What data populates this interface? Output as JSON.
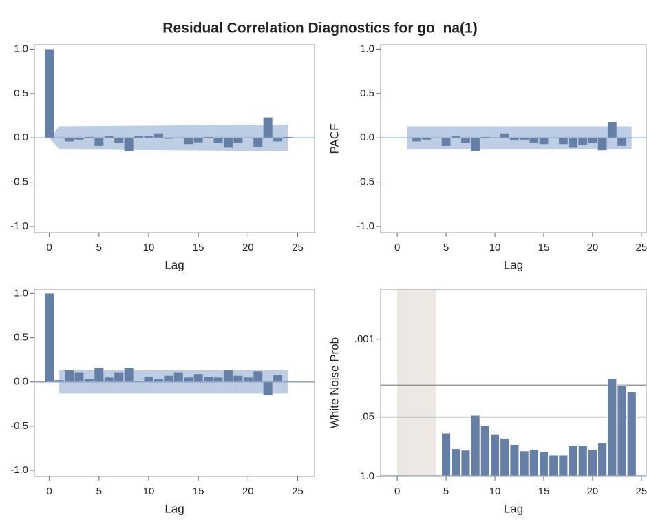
{
  "title": "Residual Correlation Diagnostics for go_na(1)",
  "chart_data": [
    {
      "type": "bar",
      "xlabel": "Lag",
      "color": "#667fa6",
      "band_color": "#bccde4",
      "reference_line": 0,
      "x": [
        0,
        1,
        2,
        3,
        4,
        5,
        6,
        7,
        8,
        9,
        10,
        11,
        12,
        13,
        14,
        15,
        16,
        17,
        18,
        19,
        20,
        21,
        22,
        23,
        24
      ],
      "values": [
        1.0,
        0.0,
        -0.04,
        -0.02,
        0.01,
        -0.09,
        0.02,
        -0.06,
        -0.15,
        0.02,
        0.02,
        0.05,
        -0.01,
        0.0,
        -0.07,
        -0.05,
        0.01,
        -0.06,
        -0.11,
        -0.06,
        0.0,
        -0.1,
        0.23,
        -0.04,
        0.01
      ],
      "band": {
        "x": [
          0,
          1,
          24
        ],
        "upper": [
          0,
          0.13,
          0.15
        ],
        "lower": [
          0,
          -0.13,
          -0.15
        ]
      },
      "xlim": [
        -1.5,
        26.7
      ],
      "ylim": [
        -1.07,
        1.05
      ],
      "xticks": [
        0,
        5,
        10,
        15,
        20,
        25
      ],
      "yticks": [
        {
          "value": -1,
          "label": "-1.0"
        },
        {
          "value": -0.5,
          "label": "-0.5"
        },
        {
          "value": 0,
          "label": "0.0"
        },
        0.5,
        {
          "value": 1,
          "label": "1.0"
        }
      ]
    },
    {
      "type": "bar",
      "xlabel": "Lag",
      "ylabel": "PACF",
      "color": "#667fa6",
      "band_color": "#bccde4",
      "reference_line": 0,
      "x": [
        1,
        2,
        3,
        4,
        5,
        6,
        7,
        8,
        9,
        10,
        11,
        12,
        13,
        14,
        15,
        16,
        17,
        18,
        19,
        20,
        21,
        22,
        23,
        24
      ],
      "values": [
        0.0,
        -0.04,
        -0.02,
        0.0,
        -0.09,
        0.02,
        -0.06,
        -0.15,
        0.01,
        0.0,
        0.05,
        -0.03,
        -0.02,
        -0.06,
        -0.07,
        0.0,
        -0.07,
        -0.11,
        -0.08,
        -0.06,
        -0.14,
        0.18,
        -0.09,
        0.0
      ],
      "band": {
        "x": [
          1,
          24
        ],
        "upper": [
          0.13,
          0.13
        ],
        "lower": [
          -0.13,
          -0.13
        ]
      },
      "xlim": [
        -1.7,
        25.5
      ],
      "ylim": [
        -1.07,
        1.05
      ],
      "xticks": [
        0,
        5,
        10,
        15,
        20,
        25
      ],
      "yticks": [
        {
          "value": -1,
          "label": "-1.0"
        },
        {
          "value": -0.5,
          "label": "-0.5"
        },
        {
          "value": 0,
          "label": "0.0"
        },
        0.5,
        {
          "value": 1,
          "label": "1.0"
        }
      ]
    },
    {
      "type": "bar",
      "xlabel": "Lag",
      "color": "#667fa6",
      "band_color": "#bccde4",
      "reference_line": 0,
      "x": [
        0,
        1,
        2,
        3,
        4,
        5,
        6,
        7,
        8,
        9,
        10,
        11,
        12,
        13,
        14,
        15,
        16,
        17,
        18,
        19,
        20,
        21,
        22,
        23,
        24
      ],
      "values": [
        1.0,
        0.02,
        0.13,
        0.11,
        0.03,
        0.16,
        0.05,
        0.11,
        0.16,
        0.01,
        0.06,
        0.03,
        0.07,
        0.11,
        0.05,
        0.09,
        0.06,
        0.05,
        0.13,
        0.07,
        0.05,
        0.12,
        -0.15,
        0.08,
        0.01
      ],
      "band": {
        "x": [
          1,
          24
        ],
        "upper": [
          0.13,
          0.13
        ],
        "lower": [
          -0.13,
          -0.13
        ]
      },
      "xlim": [
        -1.5,
        26.7
      ],
      "ylim": [
        -1.07,
        1.05
      ],
      "xticks": [
        0,
        5,
        10,
        15,
        20,
        25
      ],
      "yticks": [
        {
          "value": -1,
          "label": "-1.0"
        },
        {
          "value": -0.5,
          "label": "-0.5"
        },
        {
          "value": 0,
          "label": "0.0"
        },
        0.5,
        {
          "value": 1,
          "label": "1.0"
        }
      ]
    },
    {
      "type": "bar",
      "xlabel": "Lag",
      "ylabel": "White Noise Prob",
      "color": "#667fa6",
      "log_scale": true,
      "shade": [
        0,
        4
      ],
      "shade_color": "#ede8e3",
      "reflines": [
        0.05,
        0.01
      ],
      "x": [
        5,
        6,
        7,
        8,
        9,
        10,
        11,
        12,
        13,
        14,
        15,
        16,
        17,
        18,
        19,
        20,
        21,
        22,
        23,
        24
      ],
      "values": [
        0.113,
        0.248,
        0.267,
        0.046,
        0.077,
        0.122,
        0.146,
        0.2,
        0.277,
        0.258,
        0.287,
        0.343,
        0.343,
        0.208,
        0.208,
        0.258,
        0.187,
        0.0072,
        0.01,
        0.0143
      ],
      "xlim": [
        -1.7,
        25.5
      ],
      "ylim": [
        1,
        8e-05
      ],
      "xticks": [
        0,
        5,
        10,
        15,
        20,
        25
      ],
      "yticks": [
        {
          "value": 1,
          "label": "1.0"
        },
        {
          "value": 0.05,
          "label": ".05"
        },
        {
          "value": 0.001,
          "label": ".001"
        }
      ]
    }
  ]
}
